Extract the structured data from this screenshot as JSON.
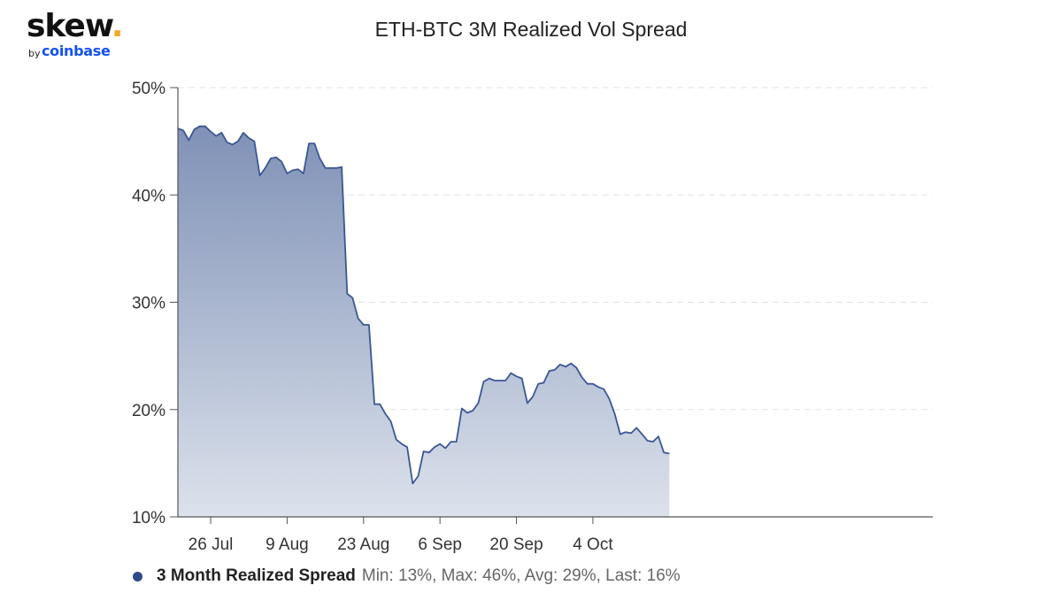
{
  "brand": {
    "wordmark": "skew",
    "dot": ".",
    "by": "by",
    "company": "coinbase",
    "wordmark_color": "#111111",
    "dot_color": "#f5a623",
    "company_color": "#1652f0"
  },
  "chart_data": {
    "type": "area",
    "title": "ETH-BTC 3M Realized Vol Spread",
    "xlabel": "",
    "ylabel": "",
    "x_start": "2021-07-20",
    "x_end": "2021-10-15",
    "x_ticks": [
      {
        "date": "2021-07-26",
        "label": "26 Jul"
      },
      {
        "date": "2021-08-09",
        "label": "9 Aug"
      },
      {
        "date": "2021-08-23",
        "label": "23 Aug"
      },
      {
        "date": "2021-09-06",
        "label": "6 Sep"
      },
      {
        "date": "2021-09-20",
        "label": "20 Sep"
      },
      {
        "date": "2021-10-04",
        "label": "4 Oct"
      }
    ],
    "y_ticks": [
      {
        "value": 10,
        "label": "10%"
      },
      {
        "value": 20,
        "label": "20%"
      },
      {
        "value": 30,
        "label": "30%"
      },
      {
        "value": 40,
        "label": "40%"
      },
      {
        "value": 50,
        "label": "50%"
      }
    ],
    "ylim": [
      10,
      50
    ],
    "grid": "horizontal dashed",
    "legend_position": "bottom",
    "colors": {
      "line": "#3b5694",
      "fill_top": "#7f91b6",
      "fill_bottom": "#dce2ec"
    },
    "series": [
      {
        "name": "3 Month Realized Spread",
        "stats": "Min: 13%, Max: 46%, Avg: 29%, Last: 16%",
        "points": [
          [
            "2021-07-20",
            46.2
          ],
          [
            "2021-07-21",
            46.0
          ],
          [
            "2021-07-22",
            45.1
          ],
          [
            "2021-07-23",
            46.1
          ],
          [
            "2021-07-24",
            46.4
          ],
          [
            "2021-07-25",
            46.4
          ],
          [
            "2021-07-26",
            45.9
          ],
          [
            "2021-07-27",
            45.5
          ],
          [
            "2021-07-28",
            45.8
          ],
          [
            "2021-07-29",
            44.9
          ],
          [
            "2021-07-30",
            44.7
          ],
          [
            "2021-07-31",
            45.0
          ],
          [
            "2021-08-01",
            45.8
          ],
          [
            "2021-08-02",
            45.3
          ],
          [
            "2021-08-03",
            45.0
          ],
          [
            "2021-08-04",
            41.8
          ],
          [
            "2021-08-05",
            42.5
          ],
          [
            "2021-08-06",
            43.4
          ],
          [
            "2021-08-07",
            43.5
          ],
          [
            "2021-08-08",
            43.1
          ],
          [
            "2021-08-09",
            42.0
          ],
          [
            "2021-08-10",
            42.3
          ],
          [
            "2021-08-11",
            42.4
          ],
          [
            "2021-08-12",
            42.0
          ],
          [
            "2021-08-13",
            44.8
          ],
          [
            "2021-08-14",
            44.8
          ],
          [
            "2021-08-15",
            43.4
          ],
          [
            "2021-08-16",
            42.5
          ],
          [
            "2021-08-17",
            42.5
          ],
          [
            "2021-08-18",
            42.5
          ],
          [
            "2021-08-19",
            42.6
          ],
          [
            "2021-08-20",
            30.8
          ],
          [
            "2021-08-21",
            30.4
          ],
          [
            "2021-08-22",
            28.5
          ],
          [
            "2021-08-23",
            27.9
          ],
          [
            "2021-08-24",
            27.9
          ],
          [
            "2021-08-25",
            20.5
          ],
          [
            "2021-08-26",
            20.5
          ],
          [
            "2021-08-27",
            19.6
          ],
          [
            "2021-08-28",
            18.9
          ],
          [
            "2021-08-29",
            17.2
          ],
          [
            "2021-08-30",
            16.8
          ],
          [
            "2021-08-31",
            16.5
          ],
          [
            "2021-09-01",
            13.1
          ],
          [
            "2021-09-02",
            13.8
          ],
          [
            "2021-09-03",
            16.1
          ],
          [
            "2021-09-04",
            16.0
          ],
          [
            "2021-09-05",
            16.5
          ],
          [
            "2021-09-06",
            16.8
          ],
          [
            "2021-09-07",
            16.4
          ],
          [
            "2021-09-08",
            17.0
          ],
          [
            "2021-09-09",
            17.0
          ],
          [
            "2021-09-10",
            20.1
          ],
          [
            "2021-09-11",
            19.7
          ],
          [
            "2021-09-12",
            19.9
          ],
          [
            "2021-09-13",
            20.6
          ],
          [
            "2021-09-14",
            22.6
          ],
          [
            "2021-09-15",
            22.9
          ],
          [
            "2021-09-16",
            22.7
          ],
          [
            "2021-09-17",
            22.7
          ],
          [
            "2021-09-18",
            22.7
          ],
          [
            "2021-09-19",
            23.4
          ],
          [
            "2021-09-20",
            23.1
          ],
          [
            "2021-09-21",
            22.9
          ],
          [
            "2021-09-22",
            20.6
          ],
          [
            "2021-09-23",
            21.2
          ],
          [
            "2021-09-24",
            22.4
          ],
          [
            "2021-09-25",
            22.5
          ],
          [
            "2021-09-26",
            23.6
          ],
          [
            "2021-09-27",
            23.7
          ],
          [
            "2021-09-28",
            24.2
          ],
          [
            "2021-09-29",
            24.0
          ],
          [
            "2021-09-30",
            24.3
          ],
          [
            "2021-10-01",
            23.9
          ],
          [
            "2021-10-02",
            23.0
          ],
          [
            "2021-10-03",
            22.4
          ],
          [
            "2021-10-04",
            22.4
          ],
          [
            "2021-10-05",
            22.1
          ],
          [
            "2021-10-06",
            21.9
          ],
          [
            "2021-10-07",
            21.0
          ],
          [
            "2021-10-08",
            19.6
          ],
          [
            "2021-10-09",
            17.7
          ],
          [
            "2021-10-10",
            17.9
          ],
          [
            "2021-10-11",
            17.8
          ],
          [
            "2021-10-12",
            18.3
          ],
          [
            "2021-10-13",
            17.7
          ],
          [
            "2021-10-14",
            17.1
          ],
          [
            "2021-10-15",
            17.0
          ],
          [
            "2021-10-16",
            17.5
          ],
          [
            "2021-10-17",
            16.0
          ],
          [
            "2021-10-18",
            15.9
          ]
        ]
      }
    ]
  }
}
